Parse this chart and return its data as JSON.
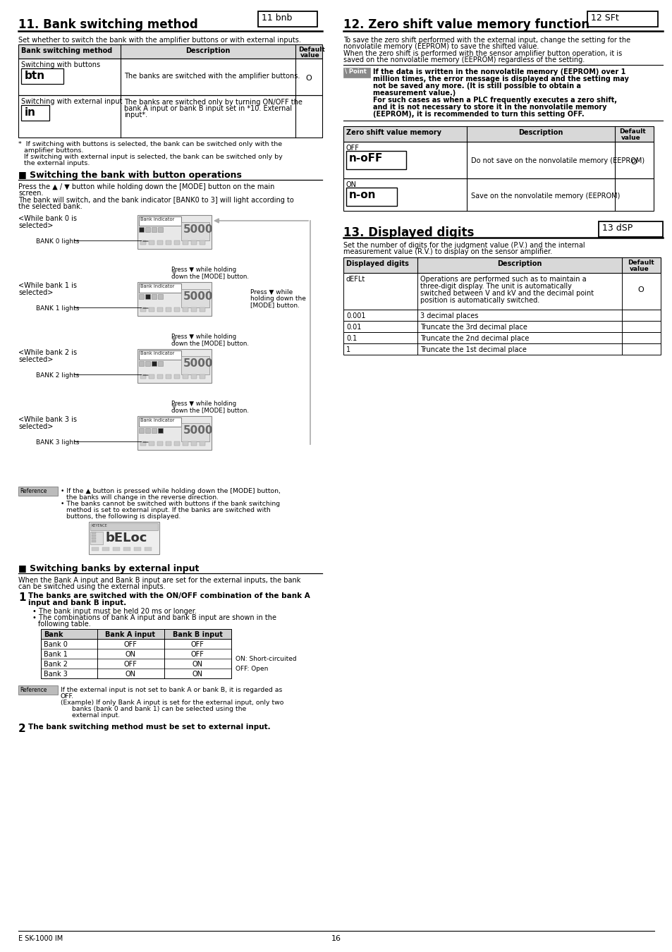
{
  "page_bg": "#ffffff",
  "section11_title": "11. Bank switching method",
  "section12_title": "12. Zero shift value memory function",
  "section13_title": "13. Displayed digits",
  "footer_left": "E SK-1000 IM",
  "footer_center": "16"
}
